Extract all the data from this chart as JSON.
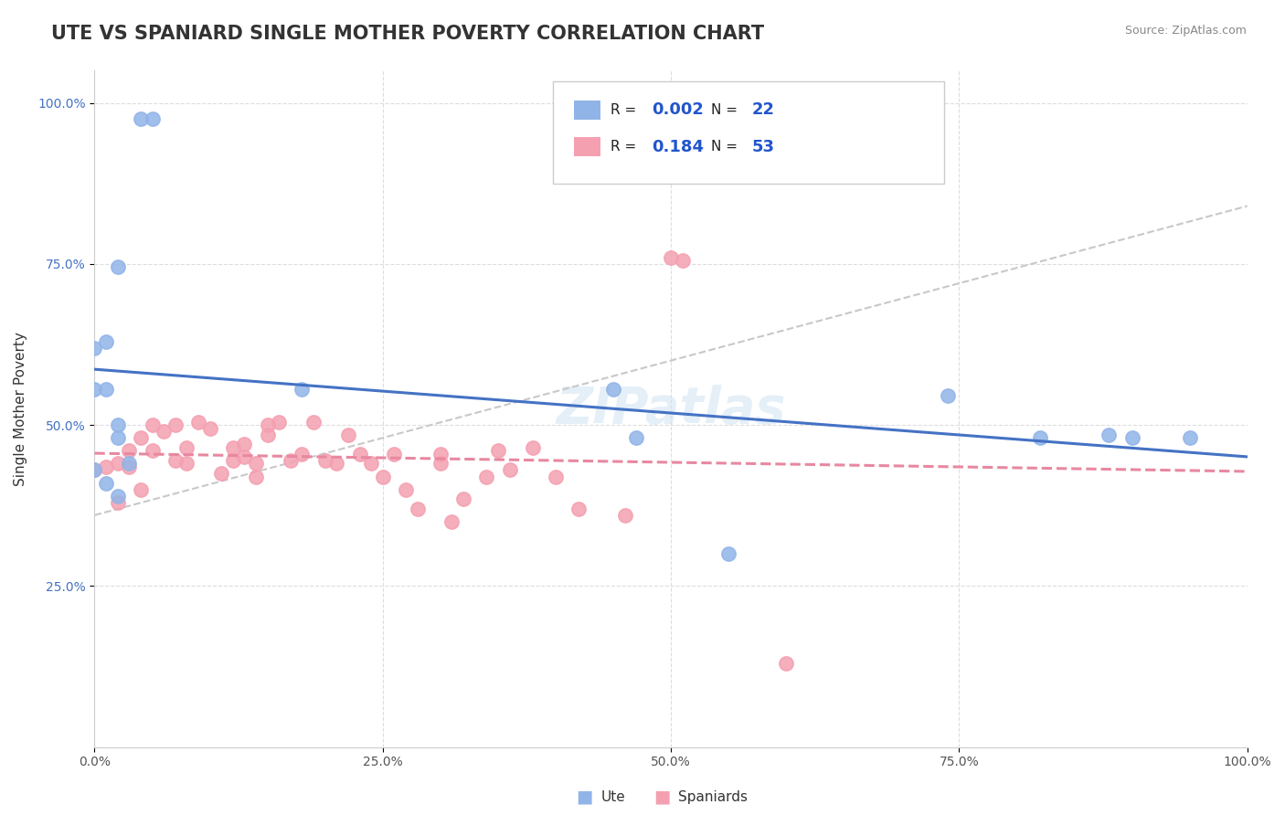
{
  "title": "UTE VS SPANIARD SINGLE MOTHER POVERTY CORRELATION CHART",
  "source": "Source: ZipAtlas.com",
  "ylabel": "Single Mother Poverty",
  "ute_R": "0.002",
  "ute_N": "22",
  "spaniard_R": "0.184",
  "spaniard_N": "53",
  "ute_color": "#91b4e8",
  "spaniard_color": "#f4a0b0",
  "ute_line_color": "#4472c4",
  "spaniard_line_color": "#e888a0",
  "gray_line_color": "#c8c8c8",
  "ute_x": [
    0.04,
    0.05,
    0.02,
    0.01,
    0.0,
    0.0,
    0.01,
    0.02,
    0.02,
    0.03,
    0.18,
    0.0,
    0.01,
    0.02,
    0.47,
    0.74,
    0.82,
    0.9,
    0.55,
    0.95,
    0.88,
    0.45
  ],
  "ute_y": [
    0.975,
    0.975,
    0.745,
    0.63,
    0.62,
    0.555,
    0.555,
    0.5,
    0.48,
    0.44,
    0.555,
    0.43,
    0.41,
    0.39,
    0.48,
    0.545,
    0.48,
    0.48,
    0.3,
    0.48,
    0.485,
    0.555
  ],
  "spaniard_x": [
    0.0,
    0.01,
    0.02,
    0.02,
    0.03,
    0.03,
    0.04,
    0.04,
    0.05,
    0.05,
    0.06,
    0.07,
    0.07,
    0.08,
    0.08,
    0.09,
    0.1,
    0.11,
    0.12,
    0.12,
    0.13,
    0.13,
    0.14,
    0.14,
    0.15,
    0.15,
    0.16,
    0.17,
    0.18,
    0.19,
    0.2,
    0.21,
    0.22,
    0.23,
    0.24,
    0.25,
    0.26,
    0.27,
    0.28,
    0.3,
    0.3,
    0.31,
    0.32,
    0.34,
    0.35,
    0.36,
    0.38,
    0.4,
    0.42,
    0.46,
    0.5,
    0.51,
    0.6
  ],
  "spaniard_y": [
    0.43,
    0.435,
    0.38,
    0.44,
    0.435,
    0.46,
    0.4,
    0.48,
    0.46,
    0.5,
    0.49,
    0.445,
    0.5,
    0.465,
    0.44,
    0.505,
    0.495,
    0.425,
    0.445,
    0.465,
    0.45,
    0.47,
    0.42,
    0.44,
    0.485,
    0.5,
    0.505,
    0.445,
    0.455,
    0.505,
    0.445,
    0.44,
    0.485,
    0.455,
    0.44,
    0.42,
    0.455,
    0.4,
    0.37,
    0.44,
    0.455,
    0.35,
    0.385,
    0.42,
    0.46,
    0.43,
    0.465,
    0.42,
    0.37,
    0.36,
    0.76,
    0.755,
    0.13
  ],
  "xtick_values": [
    0.0,
    0.25,
    0.5,
    0.75,
    1.0
  ],
  "xtick_labels": [
    "0.0%",
    "25.0%",
    "50.0%",
    "75.0%",
    "100.0%"
  ],
  "ytick_values": [
    0.25,
    0.5,
    0.75,
    1.0
  ],
  "ytick_labels": [
    "25.0%",
    "50.0%",
    "75.0%",
    "100.0%"
  ],
  "xlim": [
    0.0,
    1.0
  ],
  "ylim": [
    0.0,
    1.05
  ]
}
